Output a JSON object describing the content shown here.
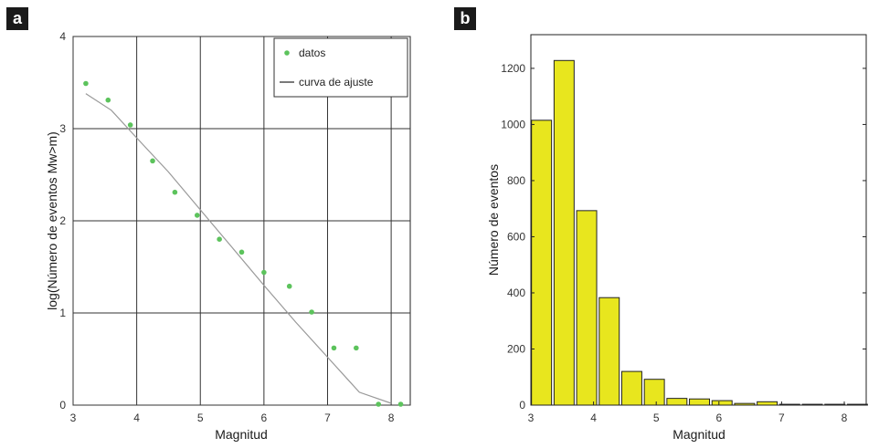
{
  "panels": {
    "a": {
      "badge": "a"
    },
    "b": {
      "badge": "b"
    }
  },
  "chart_data": [
    {
      "type": "scatter",
      "panel": "a",
      "xlabel": "Magnitud",
      "ylabel": "log(Número de eventos Mw>m)",
      "xlim": [
        3,
        8.3
      ],
      "ylim": [
        0,
        4
      ],
      "xticks": [
        "3",
        "4",
        "5",
        "6",
        "7",
        "8"
      ],
      "yticks": [
        "0",
        "1",
        "2",
        "3",
        "4"
      ],
      "grid": true,
      "legend": "top-right",
      "colors": {
        "points": "#5cc35c",
        "fit": "#999999",
        "grid": "#333333"
      },
      "series": [
        {
          "name": "datos",
          "kind": "points",
          "x": [
            3.2,
            3.55,
            3.9,
            4.25,
            4.6,
            4.95,
            5.3,
            5.65,
            6.0,
            6.4,
            6.75,
            7.1,
            7.45,
            7.8,
            8.15
          ],
          "y": [
            3.49,
            3.31,
            3.04,
            2.65,
            2.31,
            2.06,
            1.8,
            1.66,
            1.44,
            1.29,
            1.01,
            0.62,
            0.62,
            0.01,
            0.01
          ]
        },
        {
          "name": "curva de ajuste",
          "kind": "line",
          "x": [
            3.2,
            3.6,
            4.0,
            4.5,
            5.0,
            5.5,
            6.0,
            6.5,
            7.0,
            7.5,
            8.0
          ],
          "y": [
            3.38,
            3.2,
            2.9,
            2.53,
            2.12,
            1.71,
            1.3,
            0.9,
            0.52,
            0.14,
            0.02
          ]
        }
      ]
    },
    {
      "type": "bar",
      "panel": "b",
      "xlabel": "Magnitud",
      "ylabel": "Número de eventos",
      "xlim": [
        3,
        8.35
      ],
      "ylim": [
        0,
        1320
      ],
      "xticks": [
        "3",
        "4",
        "5",
        "6",
        "7",
        "8"
      ],
      "yticks": [
        "0",
        "200",
        "400",
        "600",
        "800",
        "1000",
        "1200"
      ],
      "grid": false,
      "bar_width": 0.32,
      "colors": {
        "bar": "#e8e61e",
        "edge": "#222222"
      },
      "bins": [
        3.17,
        3.53,
        3.89,
        4.25,
        4.61,
        4.97,
        5.33,
        5.69,
        6.05,
        6.41,
        6.77,
        7.13,
        7.49,
        7.85,
        8.21
      ],
      "values": [
        1015,
        1228,
        693,
        383,
        120,
        92,
        24,
        22,
        16,
        6,
        12,
        3,
        3,
        3,
        3
      ]
    }
  ]
}
